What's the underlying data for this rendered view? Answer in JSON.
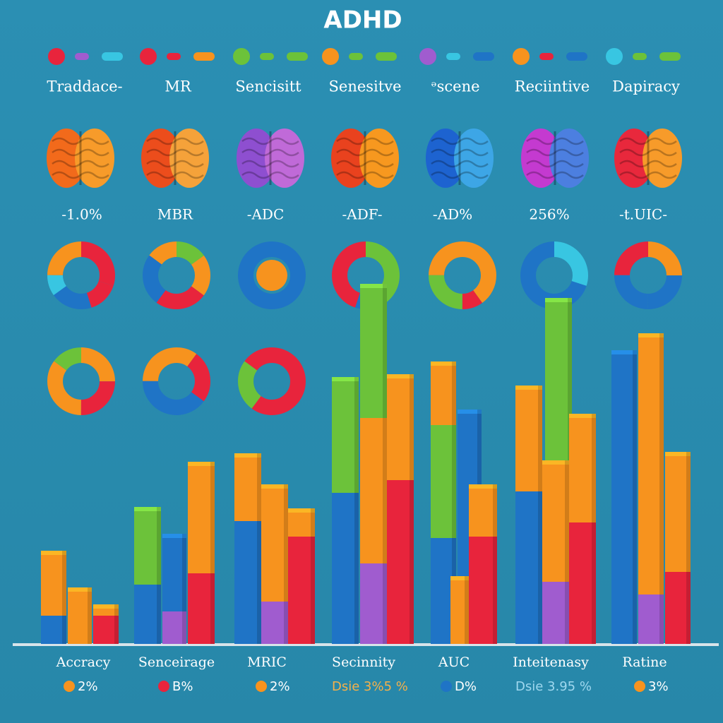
{
  "title": "ADHD",
  "top_labels": [
    "Traddace-",
    "MR",
    "Sencisitt",
    "Senesitve",
    "ᵊscene",
    "Reciintive",
    "Dapiracy"
  ],
  "brain_labels": [
    "-1.0%",
    "MBR",
    "-ADC",
    "-ADF-",
    "-AD%",
    "256%",
    "-t.UIC-"
  ],
  "bar_labels": [
    "Accracy",
    "Senceirage",
    "MRIC",
    "Secinnity",
    "AUC",
    "Inteitenasy",
    "Ratine"
  ],
  "footer_labels": [
    "2%",
    "B%",
    "2%",
    "Dsie 3%5 %",
    "D%",
    "Dsie 3.95 %",
    "3%"
  ]
}
